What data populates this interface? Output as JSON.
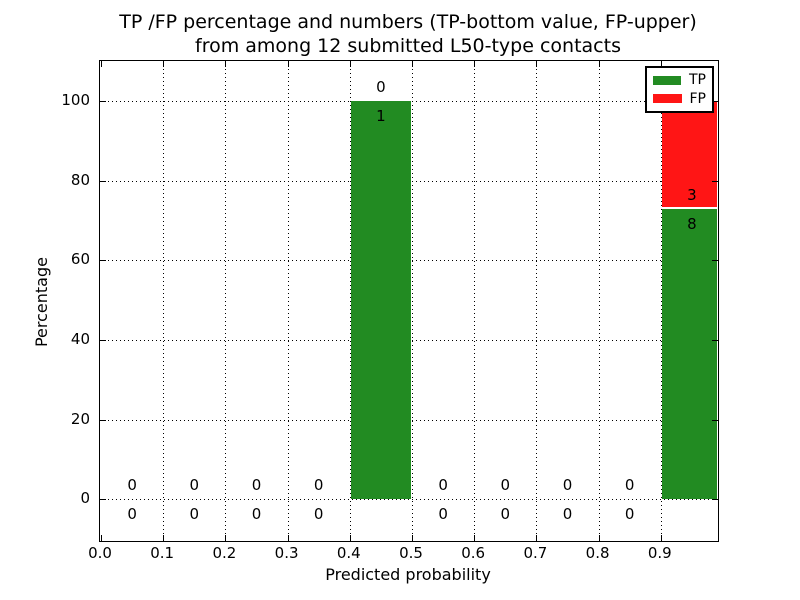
{
  "chart_data": {
    "type": "bar",
    "stacked": true,
    "title_line1": "TP /FP percentage and numbers (TP-bottom value, FP-upper)",
    "title_line2": "from among 12 submitted L50-type contacts",
    "xlabel": "Predicted probability",
    "ylabel": "Percentage",
    "xlim": [
      0.0,
      1.0
    ],
    "ylim": [
      -10.5,
      110
    ],
    "grid": true,
    "x_ticks": [
      0.0,
      0.1,
      0.2,
      0.3,
      0.4,
      0.5,
      0.6,
      0.7,
      0.8,
      0.9
    ],
    "x_tick_labels": [
      "0.0",
      "0.1",
      "0.2",
      "0.3",
      "0.4",
      "0.5",
      "0.6",
      "0.7",
      "0.8",
      "0.9"
    ],
    "y_ticks": [
      0,
      20,
      40,
      60,
      80,
      100
    ],
    "y_tick_labels": [
      "0",
      "20",
      "40",
      "60",
      "80",
      "100"
    ],
    "bin_edges": [
      0.0,
      0.1,
      0.2,
      0.3,
      0.4,
      0.5,
      0.6,
      0.7,
      0.8,
      0.9,
      1.0
    ],
    "categories": [
      0.05,
      0.15,
      0.25,
      0.35,
      0.45,
      0.55,
      0.65,
      0.75,
      0.85,
      0.95
    ],
    "series": [
      {
        "name": "TP",
        "values": [
          0,
          0,
          0,
          0,
          100,
          0,
          0,
          0,
          0,
          72.73
        ],
        "counts": [
          0,
          0,
          0,
          0,
          1,
          0,
          0,
          0,
          0,
          8
        ]
      },
      {
        "name": "FP",
        "values": [
          0,
          0,
          0,
          0,
          0,
          0,
          0,
          0,
          0,
          27.27
        ],
        "counts": [
          0,
          0,
          0,
          0,
          0,
          0,
          0,
          0,
          0,
          3
        ]
      }
    ],
    "colors": {
      "tp": "#228b22",
      "fp": "#ff1515"
    },
    "legend": {
      "position": "upper right",
      "entries": [
        {
          "label": "TP",
          "color": "#228b22"
        },
        {
          "label": "FP",
          "color": "#ff1515"
        }
      ]
    }
  }
}
